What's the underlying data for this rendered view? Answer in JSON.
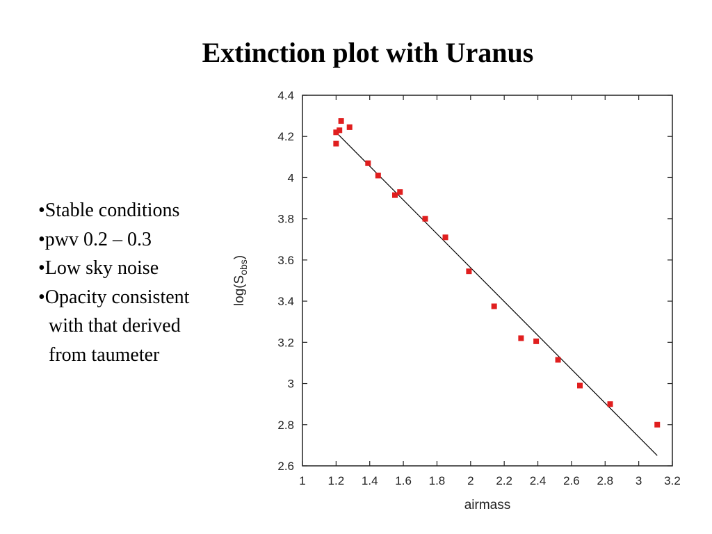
{
  "slide": {
    "title": "Extinction plot with Uranus",
    "bullets": [
      "•Stable conditions",
      "•pwv 0.2 – 0.3",
      "•Low sky noise",
      "•Opacity consistent",
      "with that derived",
      "from taumeter"
    ]
  },
  "chart_data": {
    "type": "scatter",
    "title": "",
    "xlabel": "airmass",
    "ylabel_main": "log(S",
    "ylabel_sub": "obs",
    "ylabel_close": ")",
    "xlim": [
      1,
      3.2
    ],
    "ylim": [
      2.6,
      4.4
    ],
    "xticks": [
      1,
      1.2,
      1.4,
      1.6,
      1.8,
      2,
      2.2,
      2.4,
      2.6,
      2.8,
      3,
      3.2
    ],
    "xtick_labels": [
      "1",
      "1.2",
      "1.4",
      "1.6",
      "1.8",
      "2",
      "2.2",
      "2.4",
      "2.6",
      "2.8",
      "3",
      "3.2"
    ],
    "yticks": [
      2.6,
      2.8,
      3,
      3.2,
      3.4,
      3.6,
      3.8,
      4,
      4.2,
      4.4
    ],
    "ytick_labels": [
      "2.6",
      "2.8",
      "3",
      "3.2",
      "3.4",
      "3.6",
      "3.8",
      "4",
      "4.2",
      "4.4"
    ],
    "grid": false,
    "marker_color": "#e01e1e",
    "line_color": "#000000",
    "series": [
      {
        "type": "scatter",
        "x": [
          1.2,
          1.2,
          1.22,
          1.23,
          1.28,
          1.39,
          1.45,
          1.55,
          1.58,
          1.73,
          1.85,
          1.99,
          2.14,
          2.3,
          2.39,
          2.52,
          2.65,
          2.83,
          3.11
        ],
        "y": [
          4.22,
          4.165,
          4.23,
          4.275,
          4.245,
          4.07,
          4.01,
          3.915,
          3.93,
          3.8,
          3.71,
          3.545,
          3.375,
          3.22,
          3.205,
          3.115,
          2.99,
          2.9,
          2.8
        ]
      },
      {
        "type": "line",
        "x": [
          1.2,
          3.11
        ],
        "y": [
          4.22,
          2.65
        ]
      }
    ]
  }
}
